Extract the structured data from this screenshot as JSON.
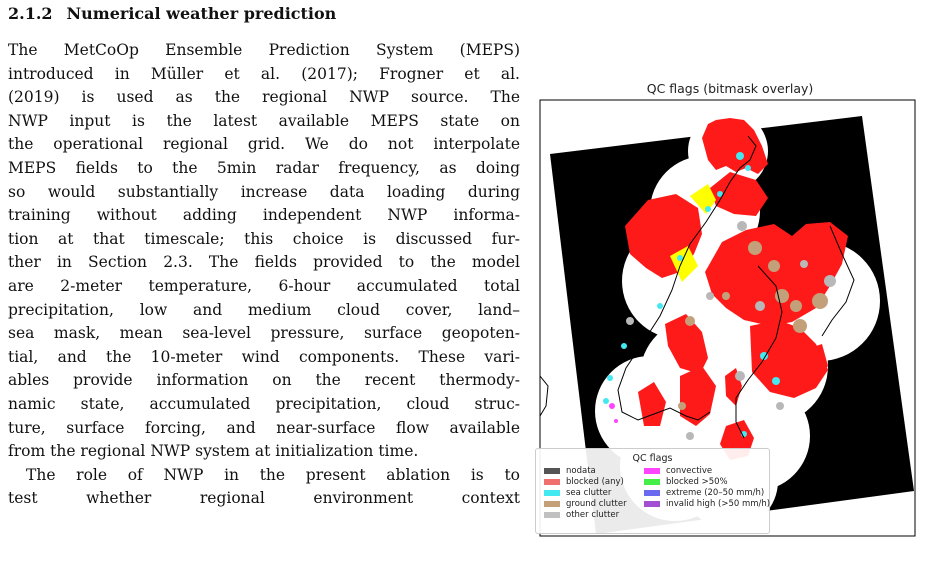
{
  "section": {
    "number": "2.1.2",
    "title": "Numerical weather prediction"
  },
  "body_lines": [
    "The MetCoOp Ensemble Prediction System (MEPS)",
    "introduced in Müller et al. (2017); Frogner et al.",
    "(2019) is used as the regional NWP source.  The",
    "NWP input is the latest available MEPS state on",
    "the operational regional grid. We do not interpolate",
    "MEPS fields to the 5min radar frequency, as doing",
    "so would substantially increase data loading during",
    "training without adding independent NWP informa-",
    "tion at that timescale; this choice is discussed fur-",
    "ther in Section 2.3. The fields provided to the model",
    "are 2-meter temperature, 6-hour accumulated total",
    "precipitation, low and medium cloud cover, land–",
    "sea mask, mean sea-level pressure, surface geopoten-",
    "tial, and the 10-meter wind components. These vari-",
    "ables provide information on the recent thermody-",
    "namic state, accumulated precipitation, cloud struc-",
    "ture, surface forcing, and near-surface flow available",
    "from the regional NWP system at initialization time.",
    "The role of NWP in the present ablation is to",
    "test whether regional environment context"
  ],
  "figure": {
    "title": "QC flags (bitmask overlay)",
    "legend_title": "QC flags",
    "legend": [
      {
        "label": "nodata",
        "color": "#555555"
      },
      {
        "label": "blocked (any)",
        "color": "#f07070"
      },
      {
        "label": "sea clutter",
        "color": "#44e8f0"
      },
      {
        "label": "ground clutter",
        "color": "#c4a07a"
      },
      {
        "label": "other clutter",
        "color": "#c0c0c0"
      },
      {
        "label": "convective",
        "color": "#ff44ff"
      },
      {
        "label": "blocked >50%",
        "color": "#44ee44"
      },
      {
        "label": "extreme (20–50 mm/h)",
        "color": "#6a6af0"
      },
      {
        "label": "invalid high (>50 mm/h)",
        "color": "#a050d0"
      }
    ]
  }
}
